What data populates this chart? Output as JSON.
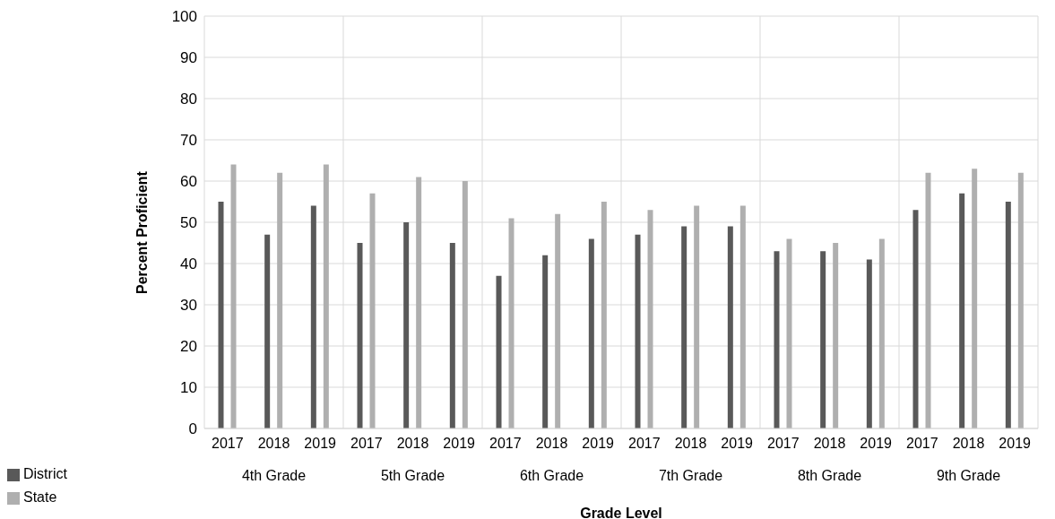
{
  "chart_data": {
    "type": "bar",
    "xlabel": "Grade Level",
    "ylabel": "Percent Proficient",
    "categories": [
      "2017",
      "2018",
      "2019",
      "2017",
      "2018",
      "2019",
      "2017",
      "2018",
      "2019",
      "2017",
      "2018",
      "2019",
      "2017",
      "2018",
      "2019",
      "2017",
      "2018",
      "2019"
    ],
    "annotations": [
      "4th Grade",
      "5th Grade",
      "6th Grade",
      "7th Grade",
      "8th Grade",
      "9th Grade"
    ],
    "series": [
      {
        "name": "District",
        "color": "#595959",
        "values": [
          55,
          47,
          54,
          45,
          50,
          45,
          37,
          42,
          46,
          47,
          49,
          49,
          43,
          43,
          41,
          53,
          57,
          55
        ]
      },
      {
        "name": "State",
        "color": "#afafaf",
        "values": [
          64,
          62,
          64,
          57,
          61,
          60,
          51,
          52,
          55,
          53,
          54,
          54,
          46,
          45,
          46,
          62,
          63,
          62
        ]
      }
    ],
    "ylim": [
      0,
      100
    ],
    "yticks": [
      0,
      10,
      20,
      30,
      40,
      50,
      60,
      70,
      80,
      90,
      100
    ],
    "grid": true,
    "legend": "bottom left"
  }
}
